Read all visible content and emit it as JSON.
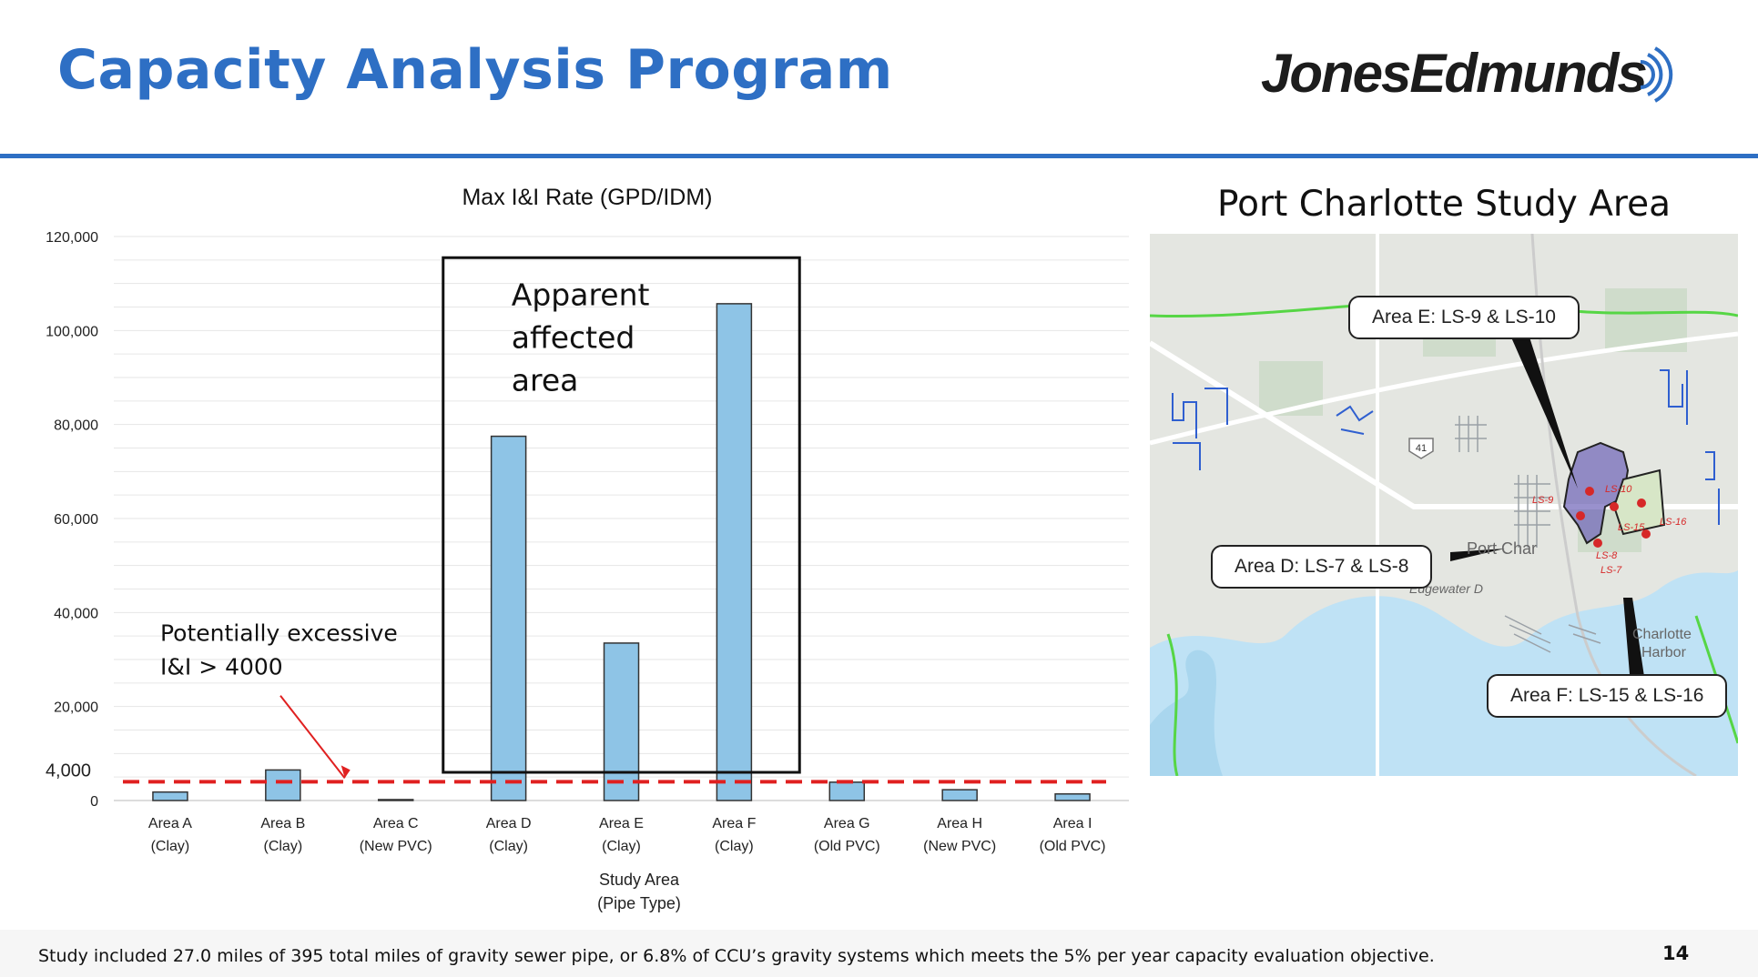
{
  "slide": {
    "title": "Capacity Analysis Program",
    "logo_text": "JonesEdmunds",
    "footer_note": "Study included 27.0 miles of 395 total miles of gravity sewer pipe, or 6.8% of CCU’s gravity systems which meets the 5% per year capacity evaluation objective.",
    "page_number": "14"
  },
  "colors": {
    "title_blue": "#2e6fc4",
    "bar_fill": "#8ec4e6",
    "bar_stroke": "#333333",
    "threshold_red": "#e02020",
    "arrow_red": "#e02020"
  },
  "chart_data": {
    "type": "bar",
    "title": "Max I&I Rate (GPD/IDM)",
    "xlabel_lines": [
      "Study Area",
      "(Pipe Type)"
    ],
    "ylabel": "",
    "ylim": [
      0,
      120000
    ],
    "yticks": [
      0,
      20000,
      40000,
      60000,
      80000,
      100000,
      120000
    ],
    "ytick_labels": [
      "0",
      "20,000",
      "40,000",
      "60,000",
      "80,000",
      "100,000",
      "120,000"
    ],
    "grid": true,
    "categories": [
      {
        "name": "Area A",
        "type": "(Clay)"
      },
      {
        "name": "Area B",
        "type": "(Clay)"
      },
      {
        "name": "Area C",
        "type": "(New PVC)"
      },
      {
        "name": "Area D",
        "type": "(Clay)"
      },
      {
        "name": "Area E",
        "type": "(Clay)"
      },
      {
        "name": "Area F",
        "type": "(Clay)"
      },
      {
        "name": "Area G",
        "type": "(Old PVC)"
      },
      {
        "name": "Area H",
        "type": "(New PVC)"
      },
      {
        "name": "Area I",
        "type": "(Old PVC)"
      }
    ],
    "values": [
      1800,
      6500,
      200,
      77500,
      33500,
      105700,
      3900,
      2300,
      1400
    ],
    "threshold": {
      "value": 4000,
      "label": "4,000"
    },
    "annotations": {
      "excessive_lines": [
        "Potentially excessive",
        "I&I > 4000"
      ],
      "affected_lines": [
        "Apparent",
        "affected",
        "area"
      ],
      "affected_range": [
        "Area D",
        "Area F"
      ]
    }
  },
  "map": {
    "title": "Port Charlotte Study Area",
    "callouts": {
      "area_e": "Area E: LS-9 & LS-10",
      "area_d": "Area D: LS-7 & LS-8",
      "area_f": "Area F: LS-15 & LS-16"
    },
    "place_labels": {
      "port_charlotte": "Port Char",
      "edgewater": "Edgewater D",
      "charlotte_harbor_1": "Charlotte",
      "charlotte_harbor_2": "Harbor",
      "highway": "41"
    },
    "lift_stations": [
      "LS-9",
      "LS-10",
      "LS-15",
      "LS-16",
      "LS-8",
      "LS-7"
    ],
    "colors": {
      "land": "#e4e6e1",
      "water": "#bfe2f5",
      "park_green": "#cfdccb",
      "boundary_green": "#56d645",
      "streets_blue": "#2f5fd0",
      "station_red": "#d62828"
    }
  }
}
